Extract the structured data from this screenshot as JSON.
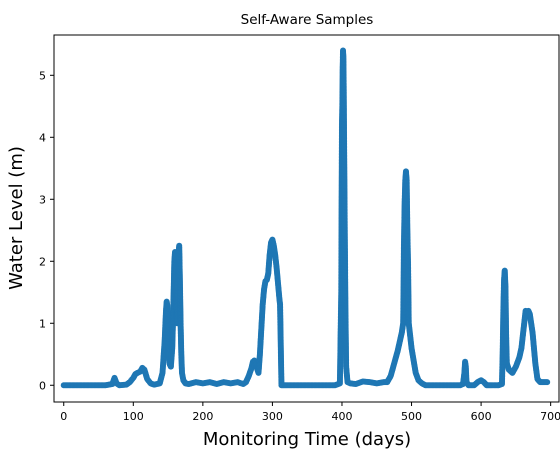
{
  "chart_data": {
    "type": "scatter",
    "title": "Self-Aware Samples",
    "xlabel": "Monitoring Time (days)",
    "ylabel": "Water Level (m)",
    "xlim": [
      -14,
      712
    ],
    "ylim": [
      -0.27,
      5.65
    ],
    "xticks": [
      0,
      100,
      200,
      300,
      400,
      500,
      600,
      700
    ],
    "yticks": [
      0,
      1,
      2,
      3,
      4,
      5
    ],
    "grid": false,
    "marker_color": "#1f77b4",
    "series": [
      {
        "points": [
          [
            0,
            0.0
          ],
          [
            10,
            0.0
          ],
          [
            20,
            0.0
          ],
          [
            30,
            0.0
          ],
          [
            40,
            0.0
          ],
          [
            50,
            0.0
          ],
          [
            60,
            0.0
          ],
          [
            70,
            0.02
          ],
          [
            73,
            0.12
          ],
          [
            76,
            0.03
          ],
          [
            80,
            0.0
          ],
          [
            90,
            0.01
          ],
          [
            95,
            0.05
          ],
          [
            100,
            0.12
          ],
          [
            103,
            0.18
          ],
          [
            106,
            0.2
          ],
          [
            110,
            0.22
          ],
          [
            113,
            0.28
          ],
          [
            116,
            0.25
          ],
          [
            120,
            0.1
          ],
          [
            125,
            0.03
          ],
          [
            130,
            0.01
          ],
          [
            138,
            0.03
          ],
          [
            142,
            0.2
          ],
          [
            145,
            0.7
          ],
          [
            147,
            1.2
          ],
          [
            148,
            1.35
          ],
          [
            149,
            1.28
          ],
          [
            150,
            0.9
          ],
          [
            151,
            0.5
          ],
          [
            152,
            0.35
          ],
          [
            154,
            0.3
          ],
          [
            156,
            0.6
          ],
          [
            157,
            1.0
          ],
          [
            158,
            1.5
          ],
          [
            159,
            2.0
          ],
          [
            160,
            2.15
          ],
          [
            161,
            1.7
          ],
          [
            162,
            1.2
          ],
          [
            163,
            1.0
          ],
          [
            164,
            1.6
          ],
          [
            165,
            2.1
          ],
          [
            166,
            2.25
          ],
          [
            167,
            1.7
          ],
          [
            168,
            1.0
          ],
          [
            169,
            0.5
          ],
          [
            170,
            0.2
          ],
          [
            172,
            0.08
          ],
          [
            175,
            0.03
          ],
          [
            180,
            0.02
          ],
          [
            190,
            0.05
          ],
          [
            200,
            0.03
          ],
          [
            210,
            0.05
          ],
          [
            220,
            0.02
          ],
          [
            230,
            0.05
          ],
          [
            240,
            0.03
          ],
          [
            250,
            0.05
          ],
          [
            258,
            0.02
          ],
          [
            262,
            0.05
          ],
          [
            266,
            0.15
          ],
          [
            270,
            0.28
          ],
          [
            272,
            0.38
          ],
          [
            274,
            0.4
          ],
          [
            277,
            0.3
          ],
          [
            280,
            0.2
          ],
          [
            282,
            0.5
          ],
          [
            284,
            0.9
          ],
          [
            286,
            1.3
          ],
          [
            288,
            1.55
          ],
          [
            290,
            1.68
          ],
          [
            292,
            1.7
          ],
          [
            294,
            1.8
          ],
          [
            296,
            2.1
          ],
          [
            298,
            2.3
          ],
          [
            300,
            2.35
          ],
          [
            302,
            2.25
          ],
          [
            304,
            2.1
          ],
          [
            306,
            1.9
          ],
          [
            308,
            1.65
          ],
          [
            310,
            1.4
          ],
          [
            311,
            1.3
          ],
          [
            313,
            0.0
          ],
          [
            320,
            0.0
          ],
          [
            330,
            0.0
          ],
          [
            340,
            0.0
          ],
          [
            350,
            0.0
          ],
          [
            360,
            0.0
          ],
          [
            370,
            0.0
          ],
          [
            380,
            0.0
          ],
          [
            390,
            0.0
          ],
          [
            397,
            0.03
          ],
          [
            399,
            1.5
          ],
          [
            399.5,
            3.0
          ],
          [
            400,
            4.2
          ],
          [
            400.5,
            4.5
          ],
          [
            401,
            5.1
          ],
          [
            401.5,
            5.4
          ],
          [
            402,
            5.3
          ],
          [
            402.5,
            4.8
          ],
          [
            403,
            4.0
          ],
          [
            404,
            2.5
          ],
          [
            405,
            1.2
          ],
          [
            406,
            0.3
          ],
          [
            408,
            0.05
          ],
          [
            412,
            0.03
          ],
          [
            420,
            0.02
          ],
          [
            430,
            0.06
          ],
          [
            440,
            0.05
          ],
          [
            450,
            0.03
          ],
          [
            460,
            0.05
          ],
          [
            465,
            0.05
          ],
          [
            470,
            0.15
          ],
          [
            475,
            0.35
          ],
          [
            480,
            0.55
          ],
          [
            484,
            0.75
          ],
          [
            486,
            0.85
          ],
          [
            488,
            1.0
          ],
          [
            488.5,
            1.5
          ],
          [
            489,
            2.2
          ],
          [
            490,
            2.9
          ],
          [
            491,
            3.3
          ],
          [
            492,
            3.45
          ],
          [
            493,
            3.3
          ],
          [
            494,
            2.5
          ],
          [
            495,
            1.95
          ],
          [
            496,
            1.0
          ],
          [
            498,
            0.8
          ],
          [
            500,
            0.6
          ],
          [
            503,
            0.4
          ],
          [
            506,
            0.2
          ],
          [
            510,
            0.08
          ],
          [
            515,
            0.03
          ],
          [
            520,
            0.0
          ],
          [
            530,
            0.0
          ],
          [
            540,
            0.0
          ],
          [
            550,
            0.0
          ],
          [
            560,
            0.0
          ],
          [
            570,
            0.0
          ],
          [
            574,
            0.02
          ],
          [
            576,
            0.2
          ],
          [
            577,
            0.38
          ],
          [
            578,
            0.3
          ],
          [
            579,
            0.05
          ],
          [
            582,
            0.0
          ],
          [
            590,
            0.0
          ],
          [
            595,
            0.05
          ],
          [
            600,
            0.08
          ],
          [
            604,
            0.05
          ],
          [
            608,
            0.0
          ],
          [
            615,
            0.0
          ],
          [
            625,
            0.0
          ],
          [
            630,
            0.02
          ],
          [
            631,
            0.5
          ],
          [
            632,
            1.2
          ],
          [
            633,
            1.7
          ],
          [
            634,
            1.85
          ],
          [
            635,
            1.6
          ],
          [
            636,
            0.8
          ],
          [
            637,
            0.35
          ],
          [
            640,
            0.25
          ],
          [
            645,
            0.2
          ],
          [
            650,
            0.3
          ],
          [
            655,
            0.45
          ],
          [
            658,
            0.6
          ],
          [
            660,
            0.8
          ],
          [
            662,
            1.0
          ],
          [
            664,
            1.2
          ],
          [
            666,
            1.18
          ],
          [
            668,
            1.2
          ],
          [
            670,
            1.15
          ],
          [
            672,
            1.0
          ],
          [
            674,
            0.85
          ],
          [
            676,
            0.6
          ],
          [
            678,
            0.35
          ],
          [
            681,
            0.1
          ],
          [
            685,
            0.05
          ],
          [
            690,
            0.05
          ],
          [
            695,
            0.05
          ]
        ]
      }
    ]
  }
}
